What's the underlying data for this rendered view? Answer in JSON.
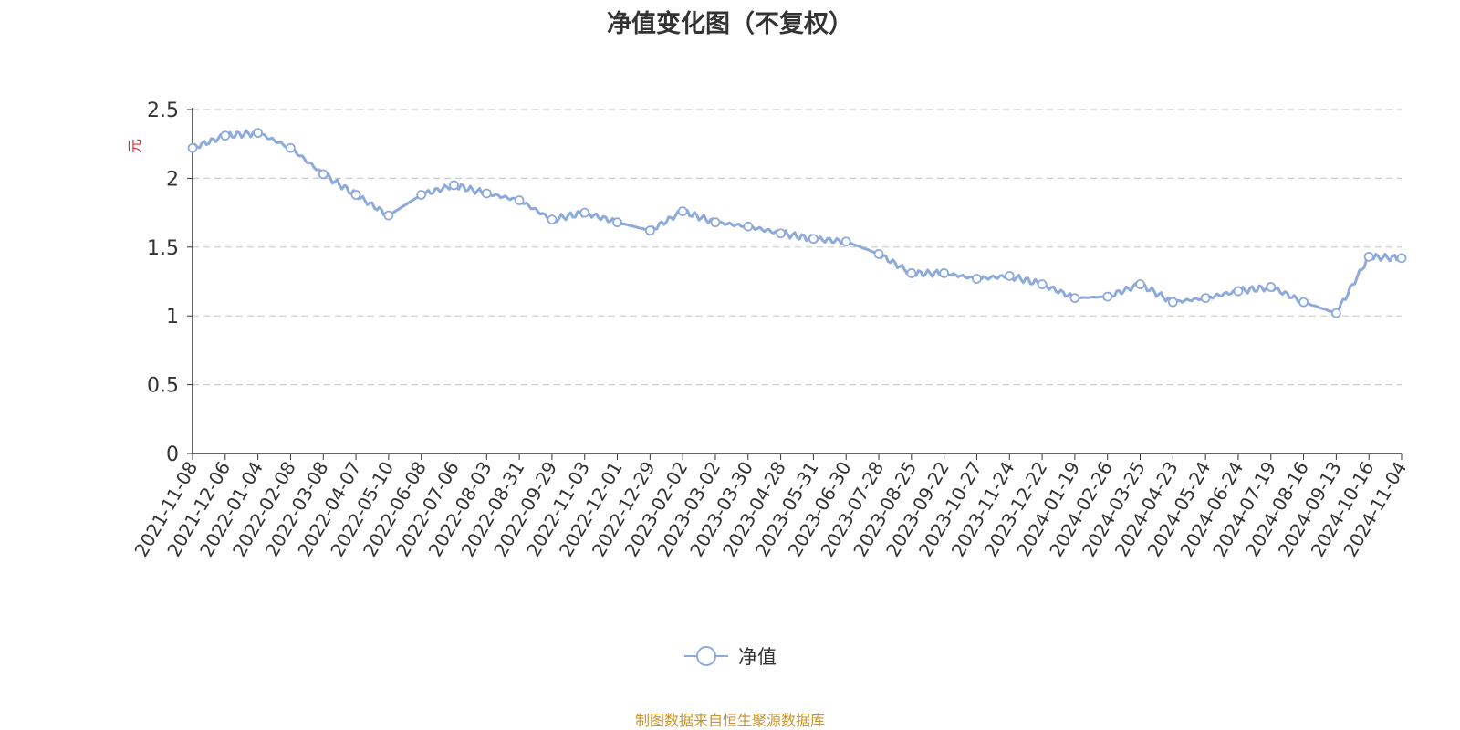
{
  "chart_data": {
    "type": "line",
    "title": "净值变化图（不复权）",
    "ylabel": "元",
    "ylim": [
      0,
      2.5
    ],
    "yticks": [
      "0",
      "0.5",
      "1",
      "1.5",
      "2",
      "2.5"
    ],
    "grid": true,
    "legend_position": "bottom-center",
    "x": [
      "2021-11-08",
      "2021-12-06",
      "2022-01-04",
      "2022-02-08",
      "2022-03-08",
      "2022-04-07",
      "2022-05-10",
      "2022-06-08",
      "2022-07-06",
      "2022-08-03",
      "2022-08-31",
      "2022-09-29",
      "2022-11-03",
      "2022-12-01",
      "2022-12-29",
      "2023-02-02",
      "2023-03-02",
      "2023-03-30",
      "2023-04-28",
      "2023-05-31",
      "2023-06-30",
      "2023-07-28",
      "2023-08-25",
      "2023-09-22",
      "2023-10-27",
      "2023-11-24",
      "2023-12-22",
      "2024-01-19",
      "2024-02-26",
      "2024-03-25",
      "2024-04-23",
      "2024-05-24",
      "2024-06-24",
      "2024-07-19",
      "2024-08-16",
      "2024-09-13",
      "2024-10-16",
      "2024-11-04"
    ],
    "series": [
      {
        "name": "净值",
        "color": "#8eaadb",
        "values": [
          2.22,
          2.31,
          2.33,
          2.22,
          2.03,
          1.88,
          1.73,
          1.88,
          1.95,
          1.89,
          1.84,
          1.7,
          1.75,
          1.68,
          1.62,
          1.76,
          1.68,
          1.65,
          1.6,
          1.56,
          1.54,
          1.45,
          1.31,
          1.31,
          1.27,
          1.29,
          1.23,
          1.13,
          1.14,
          1.23,
          1.1,
          1.13,
          1.18,
          1.21,
          1.1,
          1.02,
          1.43,
          1.42
        ]
      }
    ],
    "extra_ticks": [
      {
        "label": "2024-11-04",
        "after_index": 37
      }
    ]
  },
  "legend": {
    "label": "净值"
  },
  "footer": {
    "source": "制图数据来自恒生聚源数据库",
    "source_color": "#c8962e"
  },
  "colors": {
    "axis": "#333333",
    "grid": "#cccccc",
    "ylabel": "#e03030"
  }
}
